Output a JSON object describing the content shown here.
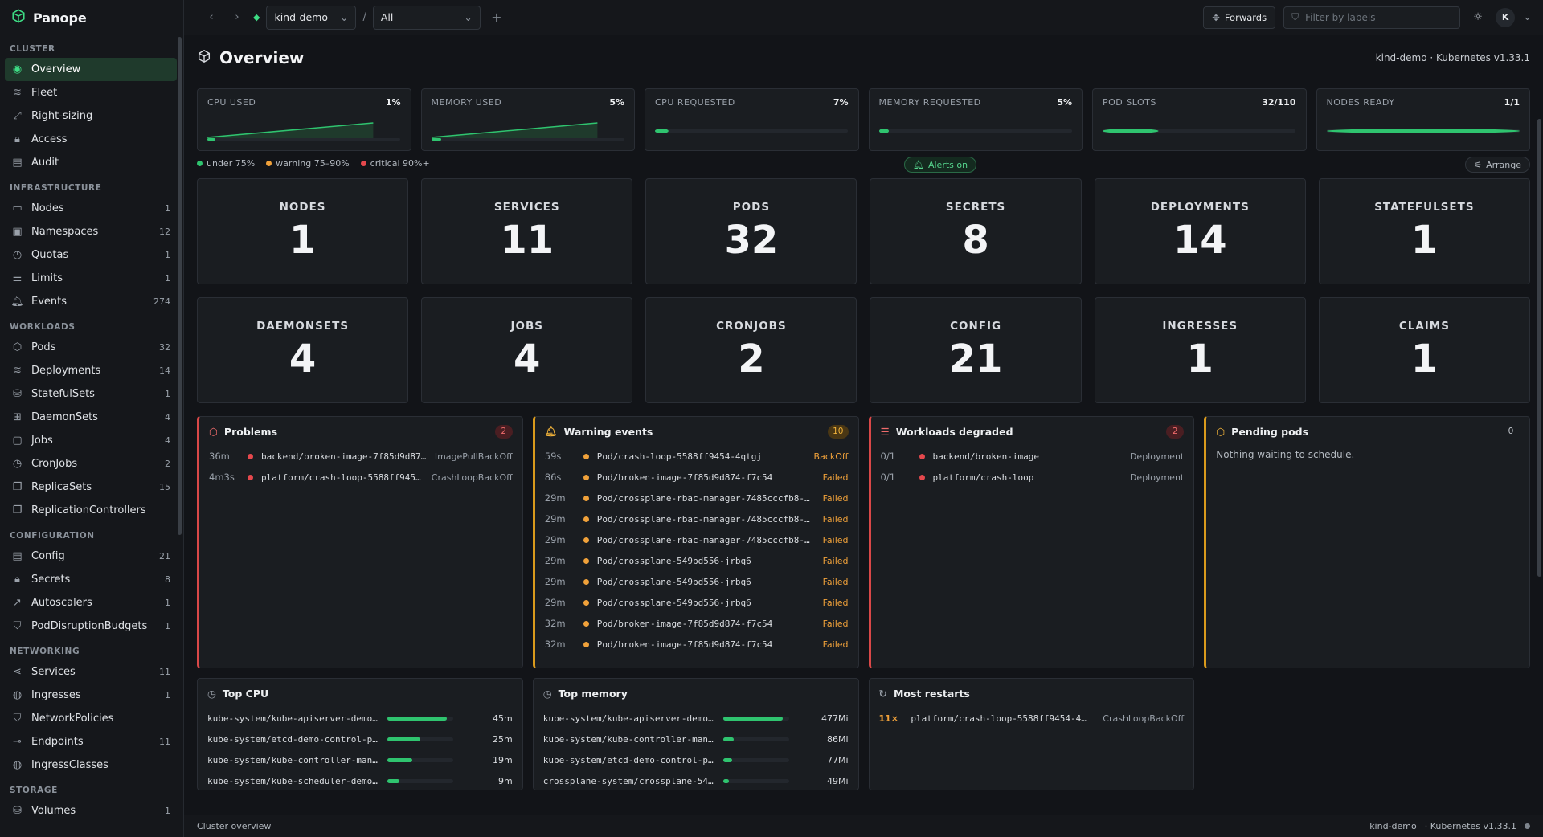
{
  "app": {
    "name": "Panope"
  },
  "sidebar": {
    "sections": [
      {
        "title": "CLUSTER",
        "items": [
          {
            "label": "Overview",
            "icon": "overview-icon",
            "active": true
          },
          {
            "label": "Fleet",
            "icon": "layers-icon"
          },
          {
            "label": "Right-sizing",
            "icon": "resize-icon"
          },
          {
            "label": "Access",
            "icon": "lock-icon"
          },
          {
            "label": "Audit",
            "icon": "document-icon"
          }
        ]
      },
      {
        "title": "INFRASTRUCTURE",
        "items": [
          {
            "label": "Nodes",
            "icon": "server-icon",
            "count": "1"
          },
          {
            "label": "Namespaces",
            "icon": "namespace-icon",
            "count": "12"
          },
          {
            "label": "Quotas",
            "icon": "clock-icon",
            "count": "1"
          },
          {
            "label": "Limits",
            "icon": "sliders-icon",
            "count": "1"
          },
          {
            "label": "Events",
            "icon": "bell-icon",
            "count": "274"
          }
        ]
      },
      {
        "title": "WORKLOADS",
        "items": [
          {
            "label": "Pods",
            "icon": "cube-icon",
            "count": "32"
          },
          {
            "label": "Deployments",
            "icon": "layers-icon",
            "count": "14"
          },
          {
            "label": "StatefulSets",
            "icon": "database-icon",
            "count": "1"
          },
          {
            "label": "DaemonSets",
            "icon": "grid-icon",
            "count": "4"
          },
          {
            "label": "Jobs",
            "icon": "briefcase-icon",
            "count": "4"
          },
          {
            "label": "CronJobs",
            "icon": "clock-icon",
            "count": "2"
          },
          {
            "label": "ReplicaSets",
            "icon": "copy-icon",
            "count": "15"
          },
          {
            "label": "ReplicationControllers",
            "icon": "copy-icon",
            "count": ""
          }
        ]
      },
      {
        "title": "CONFIGURATION",
        "items": [
          {
            "label": "Config",
            "icon": "document-icon",
            "count": "21"
          },
          {
            "label": "Secrets",
            "icon": "lock-icon",
            "count": "8"
          },
          {
            "label": "Autoscalers",
            "icon": "trend-icon",
            "count": "1"
          },
          {
            "label": "PodDisruptionBudgets",
            "icon": "shield-icon",
            "count": "1"
          }
        ]
      },
      {
        "title": "NETWORKING",
        "items": [
          {
            "label": "Services",
            "icon": "share-icon",
            "count": "11"
          },
          {
            "label": "Ingresses",
            "icon": "globe-icon",
            "count": "1"
          },
          {
            "label": "NetworkPolicies",
            "icon": "shield-icon",
            "count": ""
          },
          {
            "label": "Endpoints",
            "icon": "endpoint-icon",
            "count": "11"
          },
          {
            "label": "IngressClasses",
            "icon": "globe-icon",
            "count": ""
          }
        ]
      },
      {
        "title": "STORAGE",
        "items": [
          {
            "label": "Volumes",
            "icon": "database-icon",
            "count": "1"
          }
        ]
      }
    ]
  },
  "topbar": {
    "context": "kind-demo",
    "separator": "/",
    "namespace": "All",
    "forwards_label": "Forwards",
    "filter_placeholder": "Filter by labels",
    "avatar_initial": "K"
  },
  "header": {
    "title": "Overview",
    "cluster_info": "kind-demo · Kubernetes v1.33.1"
  },
  "meters": [
    {
      "label": "CPU USED",
      "value": "1%",
      "kind": "spark"
    },
    {
      "label": "MEMORY USED",
      "value": "5%",
      "kind": "spark"
    },
    {
      "label": "CPU REQUESTED",
      "value": "7%",
      "kind": "bar",
      "fraction": 0.07
    },
    {
      "label": "MEMORY REQUESTED",
      "value": "5%",
      "kind": "bar",
      "fraction": 0.05
    },
    {
      "label": "POD SLOTS",
      "value": "32/110",
      "kind": "bar",
      "fraction": 0.29
    },
    {
      "label": "NODES READY",
      "value": "1/1",
      "kind": "bar",
      "fraction": 1.0
    }
  ],
  "legend": {
    "under": "under 75%",
    "warning": "warning 75–90%",
    "critical": "critical 90%+",
    "alerts_label": "Alerts on",
    "arrange_label": "Arrange"
  },
  "stats": [
    {
      "label": "NODES",
      "value": "1"
    },
    {
      "label": "SERVICES",
      "value": "11"
    },
    {
      "label": "PODS",
      "value": "32"
    },
    {
      "label": "SECRETS",
      "value": "8"
    },
    {
      "label": "DEPLOYMENTS",
      "value": "14"
    },
    {
      "label": "STATEFULSETS",
      "value": "1"
    },
    {
      "label": "DAEMONSETS",
      "value": "4"
    },
    {
      "label": "JOBS",
      "value": "4"
    },
    {
      "label": "CRONJOBS",
      "value": "2"
    },
    {
      "label": "CONFIG",
      "value": "21"
    },
    {
      "label": "INGRESSES",
      "value": "1"
    },
    {
      "label": "CLAIMS",
      "value": "1"
    }
  ],
  "problems": {
    "title": "Problems",
    "count": "2",
    "rows": [
      {
        "age": "36m",
        "name": "backend/broken-image-7f85d9d87…",
        "reason": "ImagePullBackOff"
      },
      {
        "age": "4m3s",
        "name": "platform/crash-loop-5588ff945…",
        "reason": "CrashLoopBackOff"
      }
    ]
  },
  "warnings": {
    "title": "Warning events",
    "count": "10",
    "rows": [
      {
        "age": "59s",
        "name": "Pod/crash-loop-5588ff9454-4qtgj",
        "reason": "BackOff"
      },
      {
        "age": "86s",
        "name": "Pod/broken-image-7f85d9d874-f7c54",
        "reason": "Failed"
      },
      {
        "age": "29m",
        "name": "Pod/crossplane-rbac-manager-7485cccfb8-…",
        "reason": "Failed"
      },
      {
        "age": "29m",
        "name": "Pod/crossplane-rbac-manager-7485cccfb8-…",
        "reason": "Failed"
      },
      {
        "age": "29m",
        "name": "Pod/crossplane-rbac-manager-7485cccfb8-…",
        "reason": "Failed"
      },
      {
        "age": "29m",
        "name": "Pod/crossplane-549bd556-jrbq6",
        "reason": "Failed"
      },
      {
        "age": "29m",
        "name": "Pod/crossplane-549bd556-jrbq6",
        "reason": "Failed"
      },
      {
        "age": "29m",
        "name": "Pod/crossplane-549bd556-jrbq6",
        "reason": "Failed"
      },
      {
        "age": "32m",
        "name": "Pod/broken-image-7f85d9d874-f7c54",
        "reason": "Failed"
      },
      {
        "age": "32m",
        "name": "Pod/broken-image-7f85d9d874-f7c54",
        "reason": "Failed"
      }
    ]
  },
  "degraded": {
    "title": "Workloads degraded",
    "count": "2",
    "rows": [
      {
        "age": "0/1",
        "name": "backend/broken-image",
        "reason": "Deployment"
      },
      {
        "age": "0/1",
        "name": "platform/crash-loop",
        "reason": "Deployment"
      }
    ]
  },
  "pending": {
    "title": "Pending pods",
    "count": "0",
    "empty": "Nothing waiting to schedule."
  },
  "top_cpu": {
    "title": "Top CPU",
    "rows": [
      {
        "name": "kube-system/kube-apiserver-demo…",
        "value": "45m",
        "fraction": 0.9
      },
      {
        "name": "kube-system/etcd-demo-control-p…",
        "value": "25m",
        "fraction": 0.5
      },
      {
        "name": "kube-system/kube-controller-man…",
        "value": "19m",
        "fraction": 0.38
      },
      {
        "name": "kube-system/kube-scheduler-demo…",
        "value": "9m",
        "fraction": 0.18
      }
    ]
  },
  "top_mem": {
    "title": "Top memory",
    "rows": [
      {
        "name": "kube-system/kube-apiserver-demo…",
        "value": "477Mi",
        "fraction": 0.9
      },
      {
        "name": "kube-system/kube-controller-man…",
        "value": "86Mi",
        "fraction": 0.16
      },
      {
        "name": "kube-system/etcd-demo-control-p…",
        "value": "77Mi",
        "fraction": 0.14
      },
      {
        "name": "crossplane-system/crossplane-54…",
        "value": "49Mi",
        "fraction": 0.09
      }
    ]
  },
  "restarts": {
    "title": "Most restarts",
    "rows": [
      {
        "count": "11×",
        "name": "platform/crash-loop-5588ff9454-4…",
        "reason": "CrashLoopBackOff"
      }
    ]
  },
  "statusbar": {
    "left": "Cluster overview",
    "context": "kind-demo",
    "version": "· Kubernetes v1.33.1"
  },
  "colors": {
    "accent": "#3ddc84",
    "warning": "#f0a13a",
    "critical": "#e5484d",
    "ok": "#2fc46f"
  }
}
